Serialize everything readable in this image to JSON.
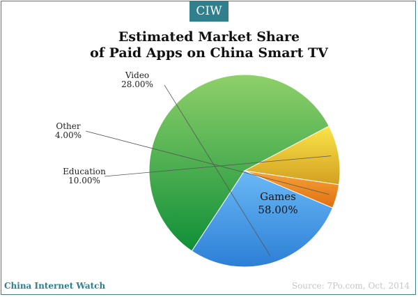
{
  "badge": "CIW",
  "title_line1": "Estimated Market Share",
  "title_line2": "of Paid Apps on China Smart TV",
  "footer_left": "China Internet Watch",
  "footer_right": "Source: 7Po.com, Oct, 2014",
  "colors": {
    "frame": "#3b7f8e",
    "badge_bg": "#2f7f8c",
    "games": "#5cb641",
    "video": "#4aa3f0",
    "other": "#f08a1a",
    "education": "#f5d42a"
  },
  "chart_data": {
    "type": "pie",
    "title": "Estimated Market Share of Paid Apps on China Smart TV",
    "slices": [
      {
        "name": "Games",
        "value": 58.0,
        "label": "58.00%"
      },
      {
        "name": "Education",
        "value": 10.0,
        "label": "10.00%"
      },
      {
        "name": "Other",
        "value": 4.0,
        "label": "4.00%"
      },
      {
        "name": "Video",
        "value": 28.0,
        "label": "28.00%"
      }
    ]
  }
}
